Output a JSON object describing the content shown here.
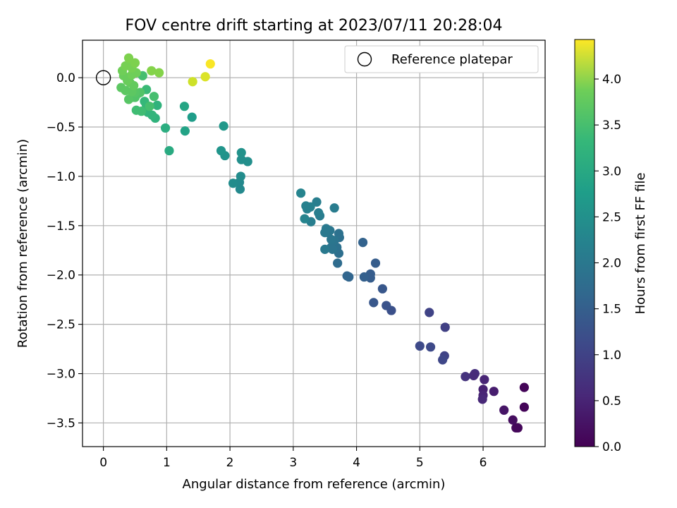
{
  "chart_data": {
    "type": "scatter",
    "title": "FOV centre drift starting at 2023/07/11 20:28:04",
    "xlabel": "Angular distance from reference (arcmin)",
    "ylabel": "Rotation from reference (arcmin)",
    "xlim": [
      -0.33,
      6.98
    ],
    "ylim": [
      -3.74,
      0.38
    ],
    "xticks": [
      "0",
      "1",
      "2",
      "3",
      "4",
      "5",
      "6"
    ],
    "yticks": [
      "0.0",
      "−0.5",
      "−1.0",
      "−1.5",
      "−2.0",
      "−2.5",
      "−3.0",
      "−3.5"
    ],
    "grid": true,
    "legend": {
      "location": "upper-right",
      "entries": [
        "Reference platepar"
      ]
    },
    "reference_point": {
      "x": 0.0,
      "y": 0.0,
      "marker": "open-circle"
    },
    "colorbar": {
      "label": "Hours from first FF file",
      "colormap": "viridis",
      "range": [
        0.0,
        4.43
      ],
      "ticks": [
        "0.0",
        "0.5",
        "1.0",
        "1.5",
        "2.0",
        "2.5",
        "3.0",
        "3.5",
        "4.0"
      ]
    },
    "points": [
      [
        6.65,
        -3.14,
        0.05
      ],
      [
        6.65,
        -3.34,
        0.05
      ],
      [
        6.52,
        -3.55,
        0.1
      ],
      [
        6.55,
        -3.55,
        0.08
      ],
      [
        6.47,
        -3.47,
        0.15
      ],
      [
        6.33,
        -3.37,
        0.25
      ],
      [
        6.17,
        -3.18,
        0.35
      ],
      [
        6.02,
        -3.06,
        0.45
      ],
      [
        6.0,
        -3.16,
        0.4
      ],
      [
        6.0,
        -3.22,
        0.45
      ],
      [
        5.99,
        -3.26,
        0.5
      ],
      [
        5.87,
        -3.0,
        0.6
      ],
      [
        5.85,
        -3.02,
        0.55
      ],
      [
        5.72,
        -3.03,
        0.65
      ],
      [
        5.4,
        -2.53,
        0.85
      ],
      [
        5.15,
        -2.38,
        0.9
      ],
      [
        5.39,
        -2.82,
        0.9
      ],
      [
        5.36,
        -2.86,
        0.95
      ],
      [
        5.17,
        -2.73,
        1.0
      ],
      [
        5.0,
        -2.72,
        1.0
      ],
      [
        4.55,
        -2.36,
        1.1
      ],
      [
        4.47,
        -2.31,
        1.15
      ],
      [
        4.41,
        -2.14,
        1.2
      ],
      [
        4.27,
        -2.28,
        1.2
      ],
      [
        4.3,
        -1.88,
        1.3
      ],
      [
        4.22,
        -2.03,
        1.3
      ],
      [
        4.22,
        -1.99,
        1.3
      ],
      [
        4.12,
        -2.02,
        1.35
      ],
      [
        4.1,
        -1.67,
        1.4
      ],
      [
        3.88,
        -2.02,
        1.45
      ],
      [
        3.85,
        -2.01,
        1.45
      ],
      [
        3.7,
        -1.88,
        1.55
      ],
      [
        3.72,
        -1.78,
        1.6
      ],
      [
        3.73,
        -1.62,
        1.6
      ],
      [
        3.72,
        -1.58,
        1.65
      ],
      [
        3.69,
        -1.72,
        1.65
      ],
      [
        3.65,
        -1.65,
        1.7
      ],
      [
        3.62,
        -1.74,
        1.7
      ],
      [
        3.6,
        -1.72,
        1.7
      ],
      [
        3.6,
        -1.64,
        1.75
      ],
      [
        3.58,
        -1.55,
        1.75
      ],
      [
        3.55,
        -1.57,
        1.75
      ],
      [
        3.52,
        -1.53,
        1.8
      ],
      [
        3.5,
        -1.74,
        1.8
      ],
      [
        3.5,
        -1.57,
        1.8
      ],
      [
        3.65,
        -1.32,
        1.85
      ],
      [
        3.42,
        -1.4,
        1.85
      ],
      [
        3.4,
        -1.37,
        1.9
      ],
      [
        3.37,
        -1.26,
        1.9
      ],
      [
        3.28,
        -1.46,
        1.9
      ],
      [
        3.27,
        -1.31,
        1.95
      ],
      [
        3.22,
        -1.33,
        1.95
      ],
      [
        3.2,
        -1.3,
        1.95
      ],
      [
        3.18,
        -1.43,
        2.0
      ],
      [
        3.12,
        -1.17,
        2.0
      ],
      [
        2.16,
        -1.13,
        2.1
      ],
      [
        2.15,
        -1.06,
        2.1
      ],
      [
        2.05,
        -1.07,
        2.15
      ],
      [
        2.17,
        -1.0,
        2.15
      ],
      [
        2.28,
        -0.85,
        2.2
      ],
      [
        2.18,
        -0.83,
        2.2
      ],
      [
        2.18,
        -0.76,
        2.25
      ],
      [
        1.92,
        -0.79,
        2.25
      ],
      [
        1.86,
        -0.74,
        2.3
      ],
      [
        1.9,
        -0.49,
        2.35
      ],
      [
        1.4,
        -0.4,
        2.45
      ],
      [
        1.29,
        -0.54,
        2.55
      ],
      [
        1.28,
        -0.29,
        2.6
      ],
      [
        1.04,
        -0.74,
        2.7
      ],
      [
        0.98,
        -0.51,
        2.75
      ],
      [
        0.82,
        -0.41,
        2.85
      ],
      [
        0.85,
        -0.28,
        2.85
      ],
      [
        0.77,
        -0.38,
        2.9
      ],
      [
        0.7,
        -0.35,
        2.9
      ],
      [
        0.68,
        -0.28,
        2.95
      ],
      [
        0.65,
        -0.24,
        2.95
      ],
      [
        0.68,
        -0.12,
        3.0
      ],
      [
        0.6,
        -0.34,
        3.05
      ],
      [
        0.52,
        -0.33,
        3.05
      ],
      [
        0.8,
        -0.19,
        3.1
      ],
      [
        0.73,
        -0.29,
        3.1
      ],
      [
        0.62,
        0.02,
        3.1
      ],
      [
        0.55,
        -0.16,
        3.15
      ],
      [
        0.58,
        -0.15,
        3.2
      ],
      [
        0.5,
        -0.2,
        3.2
      ],
      [
        0.45,
        -0.2,
        3.2
      ],
      [
        0.4,
        -0.22,
        3.25
      ],
      [
        0.5,
        -0.15,
        3.25
      ],
      [
        0.45,
        -0.14,
        3.3
      ],
      [
        0.35,
        -0.13,
        3.3
      ],
      [
        0.28,
        -0.1,
        3.3
      ],
      [
        0.48,
        -0.08,
        3.35
      ],
      [
        0.42,
        -0.05,
        3.35
      ],
      [
        0.38,
        -0.03,
        3.4
      ],
      [
        0.32,
        0.02,
        3.4
      ],
      [
        0.45,
        0.03,
        3.45
      ],
      [
        0.52,
        0.05,
        3.45
      ],
      [
        0.3,
        0.07,
        3.45
      ],
      [
        0.35,
        0.12,
        3.5
      ],
      [
        0.42,
        0.13,
        3.5
      ],
      [
        0.45,
        0.1,
        3.5
      ],
      [
        0.5,
        0.15,
        3.55
      ],
      [
        0.4,
        0.2,
        3.55
      ],
      [
        0.88,
        0.05,
        3.6
      ],
      [
        0.76,
        0.07,
        3.6
      ],
      [
        1.41,
        -0.04,
        4.1
      ],
      [
        1.61,
        0.01,
        4.2
      ],
      [
        1.69,
        0.14,
        4.4
      ]
    ]
  }
}
